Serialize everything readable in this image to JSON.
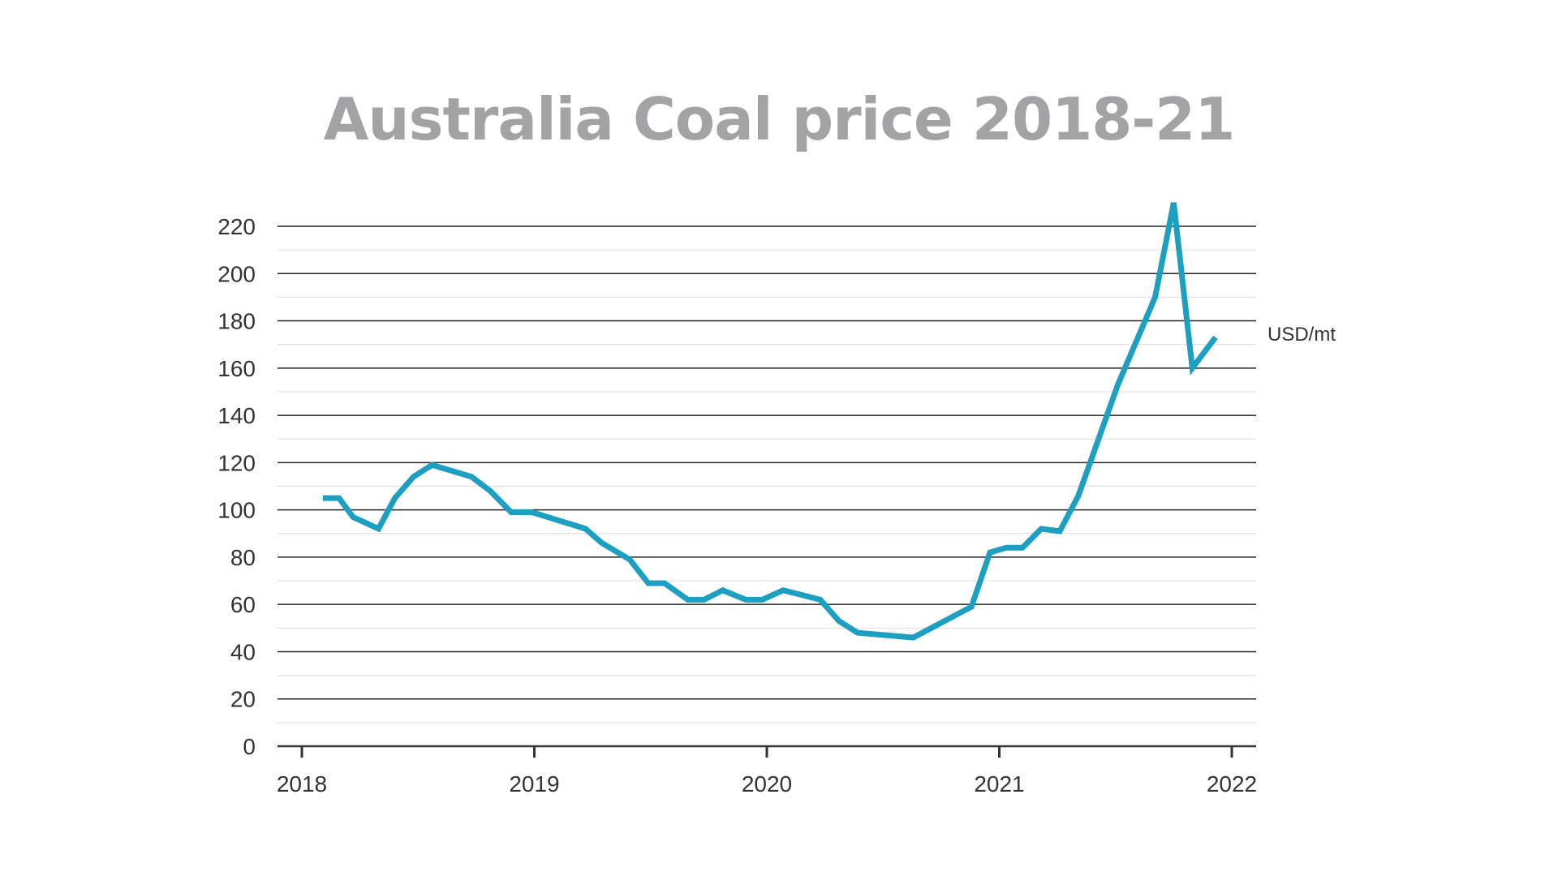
{
  "chart_data": {
    "type": "line",
    "title": "Australia Coal price 2018-21",
    "unit_label": "USD/mt",
    "xlabel": "",
    "ylabel": "",
    "ylim": [
      0,
      220
    ],
    "xlim": [
      2018,
      2022
    ],
    "y_ticks": [
      0,
      20,
      40,
      60,
      80,
      100,
      120,
      140,
      160,
      180,
      200,
      220
    ],
    "x_ticks": [
      "2018",
      "2019",
      "2020",
      "2021",
      "2022"
    ],
    "grid": true,
    "line_color": "#1c9fc0",
    "series": [
      {
        "x": [
          2018.09,
          2018.16,
          2018.22,
          2018.33,
          2018.4,
          2018.48,
          2018.56,
          2018.73,
          2018.81,
          2018.9,
          2018.99,
          2019.22,
          2019.29,
          2019.41,
          2019.49,
          2019.56,
          2019.66,
          2019.73,
          2019.81,
          2019.91,
          2019.98,
          2020.07,
          2020.15,
          2020.23,
          2020.31,
          2020.39,
          2020.63,
          2020.88,
          2020.96,
          2021.03,
          2021.1,
          2021.18,
          2021.26,
          2021.34,
          2021.51,
          2021.67,
          2021.75,
          2021.83,
          2021.93
        ],
        "y": [
          105,
          105,
          97,
          92,
          105,
          114,
          119,
          114,
          108,
          99,
          99,
          92,
          86,
          79,
          69,
          69,
          62,
          62,
          66,
          62,
          62,
          66,
          64,
          62,
          53,
          48,
          46,
          59,
          82,
          84,
          84,
          92,
          91,
          106,
          153,
          190,
          230,
          160,
          173
        ]
      }
    ]
  }
}
